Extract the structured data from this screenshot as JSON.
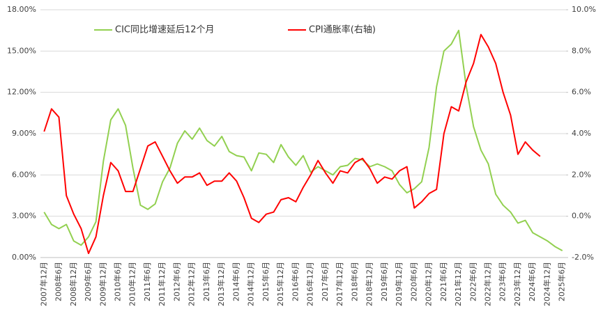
{
  "chart_data": {
    "type": "line",
    "categories": [
      "2007年12月",
      null,
      "2008年6月",
      null,
      "2008年12月",
      null,
      "2009年6月",
      null,
      "2009年12月",
      null,
      "2010年6月",
      null,
      "2010年12月",
      null,
      "2011年6月",
      null,
      "2011年12月",
      null,
      "2012年6月",
      null,
      "2012年12月",
      null,
      "2013年6月",
      null,
      "2013年12月",
      null,
      "2014年6月",
      null,
      "2014年12月",
      null,
      "2015年6月",
      null,
      "2015年12月",
      null,
      "2016年6月",
      null,
      "2016年12月",
      null,
      "2017年6月",
      null,
      "2017年12月",
      null,
      "2018年6月",
      null,
      "2018年12月",
      null,
      "2019年6月",
      null,
      "2019年12月",
      null,
      "2020年6月",
      null,
      "2020年12月",
      null,
      "2021年6月",
      null,
      "2021年12月",
      null,
      "2022年6月",
      null,
      "2022年12月",
      null,
      "2023年6月",
      null,
      "2023年12月",
      null,
      "2024年6月",
      null,
      "2024年12月",
      null,
      "2025年6月"
    ],
    "series": [
      {
        "name": "CIC同比增速延后12个月",
        "color": "#92d050",
        "values": [
          3.3,
          2.4,
          2.1,
          2.4,
          1.2,
          0.9,
          1.5,
          2.6,
          7.0,
          10.0,
          10.8,
          9.6,
          6.5,
          3.8,
          3.5,
          3.9,
          5.5,
          6.5,
          8.3,
          9.2,
          8.6,
          9.4,
          8.5,
          8.1,
          8.8,
          7.7,
          7.4,
          7.3,
          6.3,
          7.6,
          7.5,
          6.9,
          8.2,
          7.3,
          6.7,
          7.4,
          6.2,
          6.6,
          6.3,
          6.0,
          6.6,
          6.7,
          7.2,
          7.1,
          6.6,
          6.8,
          6.6,
          6.3,
          5.3,
          4.7,
          5.0,
          5.5,
          8.0,
          12.4,
          15.0,
          15.5,
          16.5,
          12.5,
          9.5,
          7.8,
          6.8,
          4.6,
          3.8,
          3.3,
          2.5,
          2.7,
          1.8,
          1.5,
          1.2,
          0.8,
          0.5
        ]
      },
      {
        "name": "CPI通胀率(右轴)",
        "color": "#ff0000",
        "axis": "y2",
        "values": [
          4.1,
          5.2,
          4.8,
          1.0,
          0.1,
          -0.6,
          -1.8,
          -1.0,
          1.0,
          2.6,
          2.2,
          1.2,
          1.2,
          2.3,
          3.4,
          3.6,
          2.9,
          2.2,
          1.6,
          1.9,
          1.9,
          2.1,
          1.5,
          1.7,
          1.7,
          2.1,
          1.7,
          0.9,
          -0.1,
          -0.3,
          0.1,
          0.2,
          0.8,
          0.9,
          0.7,
          1.4,
          2.0,
          2.7,
          2.1,
          1.6,
          2.2,
          2.1,
          2.6,
          2.8,
          2.3,
          1.6,
          1.9,
          1.8,
          2.2,
          2.4,
          0.4,
          0.7,
          1.1,
          1.3,
          4.0,
          5.3,
          5.1,
          6.5,
          7.4,
          8.8,
          8.2,
          7.4,
          6.0,
          4.9,
          3.0,
          3.6,
          3.2,
          2.9,
          null,
          null,
          null
        ]
      }
    ],
    "ylim": [
      0,
      18
    ],
    "yticks": [
      {
        "value": 0,
        "label": "0.00%"
      },
      {
        "value": 3,
        "label": "3.00%"
      },
      {
        "value": 6,
        "label": "6.00%"
      },
      {
        "value": 9,
        "label": "9.00%"
      },
      {
        "value": 12,
        "label": "12.00%"
      },
      {
        "value": 15,
        "label": "15.00%"
      },
      {
        "value": 18,
        "label": "18.00%"
      }
    ],
    "y2lim": [
      -2,
      10
    ],
    "y2ticks": [
      {
        "value": -2,
        "label": "-2.0%"
      },
      {
        "value": 0,
        "label": "0.0%"
      },
      {
        "value": 2,
        "label": "2.0%"
      },
      {
        "value": 4,
        "label": "4.0%"
      },
      {
        "value": 6,
        "label": "6.0%"
      },
      {
        "value": 8,
        "label": "8.0%"
      },
      {
        "value": 10,
        "label": "10.0%"
      }
    ],
    "grid": true,
    "legend": "top"
  }
}
